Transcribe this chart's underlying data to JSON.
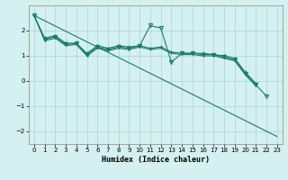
{
  "xlabel": "Humidex (Indice chaleur)",
  "bg_color": "#d4f0f0",
  "grid_color": "#aad4d4",
  "line_color": "#1a7a6e",
  "xlim": [
    -0.5,
    23.5
  ],
  "ylim": [
    -2.5,
    3.0
  ],
  "yticks": [
    -2,
    -1,
    0,
    1,
    2
  ],
  "xticks": [
    0,
    1,
    2,
    3,
    4,
    5,
    6,
    7,
    8,
    9,
    10,
    11,
    12,
    13,
    14,
    15,
    16,
    17,
    18,
    19,
    20,
    21,
    22,
    23
  ],
  "series": [
    {
      "x": [
        0,
        1,
        2,
        3,
        4,
        5,
        6,
        7,
        8,
        9,
        10,
        11,
        12,
        13,
        14,
        15,
        16,
        17,
        18,
        19,
        20,
        21
      ],
      "y": [
        2.6,
        1.7,
        1.8,
        1.5,
        1.5,
        1.1,
        1.4,
        1.3,
        1.4,
        1.35,
        1.4,
        1.3,
        1.35,
        1.15,
        1.1,
        1.1,
        1.1,
        1.05,
        1.0,
        0.9,
        0.35,
        -0.1
      ],
      "marker": "+"
    },
    {
      "x": [
        0,
        1,
        2,
        3,
        4,
        5,
        6,
        7,
        8,
        9,
        10,
        11,
        12,
        13,
        14,
        15,
        16,
        17,
        18,
        19,
        20,
        21,
        22
      ],
      "y": [
        2.6,
        1.65,
        1.75,
        1.45,
        1.5,
        1.05,
        1.35,
        1.25,
        1.35,
        1.3,
        1.4,
        2.2,
        2.1,
        0.75,
        1.1,
        1.1,
        1.05,
        1.05,
        0.95,
        0.85,
        0.3,
        -0.15,
        -0.6
      ],
      "marker": "v"
    },
    {
      "x": [
        0,
        1,
        2,
        3,
        4,
        5,
        6,
        7,
        8,
        9,
        10,
        11,
        12,
        13,
        14,
        15,
        16,
        17,
        18,
        19,
        20,
        21
      ],
      "y": [
        2.6,
        1.6,
        1.7,
        1.4,
        1.45,
        1.0,
        1.3,
        1.2,
        1.3,
        1.25,
        1.35,
        1.25,
        1.3,
        1.1,
        1.05,
        1.05,
        1.0,
        1.0,
        0.9,
        0.8,
        0.25,
        -0.2
      ],
      "marker": null
    },
    {
      "x": [
        0,
        23
      ],
      "y": [
        2.6,
        -2.2
      ],
      "marker": null
    }
  ]
}
